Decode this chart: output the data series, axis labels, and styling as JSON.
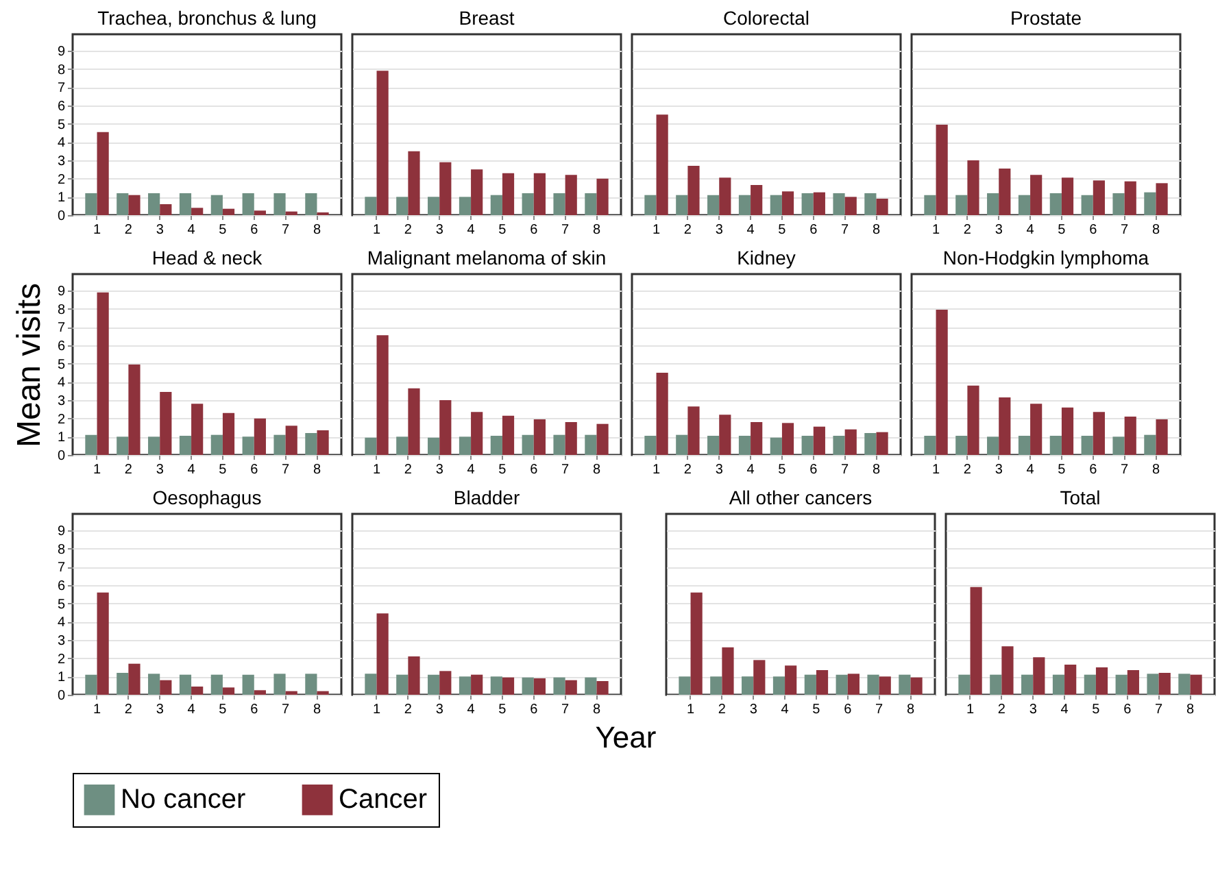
{
  "chart_data": [
    {
      "type": "bar",
      "title": "Trachea, bronchus & lung",
      "categories": [
        "1",
        "2",
        "3",
        "4",
        "5",
        "6",
        "7",
        "8"
      ],
      "ylim": [
        0,
        9.9
      ],
      "yticks": [
        0,
        1,
        2,
        3,
        4,
        5,
        6,
        7,
        8,
        9
      ],
      "grid": "y",
      "legend": "bottom",
      "series": [
        {
          "name": "No cancer",
          "color": "#6e8f82",
          "values": [
            1.2,
            1.2,
            1.2,
            1.2,
            1.1,
            1.2,
            1.2,
            1.2
          ]
        },
        {
          "name": "Cancer",
          "color": "#8e323c",
          "values": [
            4.55,
            1.1,
            0.6,
            0.4,
            0.35,
            0.25,
            0.2,
            0.15
          ]
        }
      ]
    },
    {
      "type": "bar",
      "title": "Breast",
      "categories": [
        "1",
        "2",
        "3",
        "4",
        "5",
        "6",
        "7",
        "8"
      ],
      "ylim": [
        0,
        9.9
      ],
      "yticks": [
        0,
        1,
        2,
        3,
        4,
        5,
        6,
        7,
        8,
        9
      ],
      "grid": "y",
      "legend": "bottom",
      "tick_labels": "x",
      "series": [
        {
          "name": "No cancer",
          "color": "#6e8f82",
          "values": [
            1.0,
            1.0,
            1.0,
            1.0,
            1.1,
            1.2,
            1.2,
            1.2
          ]
        },
        {
          "name": "Cancer",
          "color": "#8e323c",
          "values": [
            7.9,
            3.5,
            2.9,
            2.5,
            2.3,
            2.3,
            2.2,
            2.0
          ]
        }
      ]
    },
    {
      "type": "bar",
      "title": "Colorectal",
      "categories": [
        "1",
        "2",
        "3",
        "4",
        "5",
        "6",
        "7",
        "8"
      ],
      "ylim": [
        0,
        9.9
      ],
      "yticks": [
        0,
        1,
        2,
        3,
        4,
        5,
        6,
        7,
        8,
        9
      ],
      "grid": "y",
      "legend": "bottom",
      "tick_labels": "x",
      "series": [
        {
          "name": "No cancer",
          "color": "#6e8f82",
          "values": [
            1.1,
            1.1,
            1.1,
            1.1,
            1.1,
            1.2,
            1.2,
            1.2
          ]
        },
        {
          "name": "Cancer",
          "color": "#8e323c",
          "values": [
            5.5,
            2.7,
            2.05,
            1.65,
            1.3,
            1.25,
            1.0,
            0.9
          ]
        }
      ]
    },
    {
      "type": "bar",
      "title": "Prostate",
      "categories": [
        "1",
        "2",
        "3",
        "4",
        "5",
        "6",
        "7",
        "8"
      ],
      "ylim": [
        0,
        9.9
      ],
      "yticks": [
        0,
        1,
        2,
        3,
        4,
        5,
        6,
        7,
        8,
        9
      ],
      "grid": "y",
      "legend": "bottom",
      "tick_labels": "x",
      "series": [
        {
          "name": "No cancer",
          "color": "#6e8f82",
          "values": [
            1.1,
            1.1,
            1.2,
            1.1,
            1.2,
            1.1,
            1.2,
            1.25
          ]
        },
        {
          "name": "Cancer",
          "color": "#8e323c",
          "values": [
            4.95,
            3.0,
            2.55,
            2.2,
            2.05,
            1.9,
            1.85,
            1.75
          ]
        }
      ]
    },
    {
      "type": "bar",
      "title": "Head & neck",
      "ylabel": "Mean visits",
      "categories": [
        "1",
        "2",
        "3",
        "4",
        "5",
        "6",
        "7",
        "8"
      ],
      "ylim": [
        0,
        9.9
      ],
      "yticks": [
        0,
        1,
        2,
        3,
        4,
        5,
        6,
        7,
        8,
        9
      ],
      "grid": "y",
      "legend": "bottom",
      "series": [
        {
          "name": "No cancer",
          "color": "#6e8f82",
          "values": [
            1.1,
            1.0,
            1.0,
            1.05,
            1.1,
            1.0,
            1.1,
            1.2
          ]
        },
        {
          "name": "Cancer",
          "color": "#8e323c",
          "values": [
            8.9,
            4.95,
            3.45,
            2.8,
            2.3,
            2.0,
            1.6,
            1.35
          ]
        }
      ]
    },
    {
      "type": "bar",
      "title": "Malignant melanoma of skin",
      "categories": [
        "1",
        "2",
        "3",
        "4",
        "5",
        "6",
        "7",
        "8"
      ],
      "ylim": [
        0,
        9.9
      ],
      "yticks": [
        0,
        1,
        2,
        3,
        4,
        5,
        6,
        7,
        8,
        9
      ],
      "grid": "y",
      "legend": "bottom",
      "tick_labels": "x",
      "series": [
        {
          "name": "No cancer",
          "color": "#6e8f82",
          "values": [
            0.95,
            1.0,
            0.95,
            1.0,
            1.05,
            1.1,
            1.1,
            1.1
          ]
        },
        {
          "name": "Cancer",
          "color": "#8e323c",
          "values": [
            6.55,
            3.65,
            3.0,
            2.35,
            2.15,
            1.95,
            1.8,
            1.7
          ]
        }
      ]
    },
    {
      "type": "bar",
      "title": "Kidney",
      "categories": [
        "1",
        "2",
        "3",
        "4",
        "5",
        "6",
        "7",
        "8"
      ],
      "ylim": [
        0,
        9.9
      ],
      "yticks": [
        0,
        1,
        2,
        3,
        4,
        5,
        6,
        7,
        8,
        9
      ],
      "grid": "y",
      "legend": "bottom",
      "tick_labels": "x",
      "series": [
        {
          "name": "No cancer",
          "color": "#6e8f82",
          "values": [
            1.05,
            1.1,
            1.05,
            1.05,
            0.95,
            1.05,
            1.05,
            1.2
          ]
        },
        {
          "name": "Cancer",
          "color": "#8e323c",
          "values": [
            4.5,
            2.65,
            2.2,
            1.8,
            1.75,
            1.55,
            1.4,
            1.25
          ]
        }
      ]
    },
    {
      "type": "bar",
      "title": "Non-Hodgkin lymphoma",
      "categories": [
        "1",
        "2",
        "3",
        "4",
        "5",
        "6",
        "7",
        "8"
      ],
      "ylim": [
        0,
        9.9
      ],
      "yticks": [
        0,
        1,
        2,
        3,
        4,
        5,
        6,
        7,
        8,
        9
      ],
      "grid": "y",
      "legend": "bottom",
      "tick_labels": "x",
      "series": [
        {
          "name": "No cancer",
          "color": "#6e8f82",
          "values": [
            1.05,
            1.05,
            1.0,
            1.05,
            1.05,
            1.05,
            1.0,
            1.1
          ]
        },
        {
          "name": "Cancer",
          "color": "#8e323c",
          "values": [
            7.95,
            3.8,
            3.15,
            2.8,
            2.6,
            2.35,
            2.1,
            1.95
          ]
        }
      ]
    },
    {
      "type": "bar",
      "title": "Oesophagus",
      "categories": [
        "1",
        "2",
        "3",
        "4",
        "5",
        "6",
        "7",
        "8"
      ],
      "ylim": [
        0,
        9.9
      ],
      "yticks": [
        0,
        1,
        2,
        3,
        4,
        5,
        6,
        7,
        8,
        9
      ],
      "grid": "y",
      "legend": "bottom",
      "series": [
        {
          "name": "No cancer",
          "color": "#6e8f82",
          "values": [
            1.1,
            1.2,
            1.15,
            1.1,
            1.1,
            1.1,
            1.15,
            1.15
          ]
        },
        {
          "name": "Cancer",
          "color": "#8e323c",
          "values": [
            5.6,
            1.7,
            0.8,
            0.45,
            0.4,
            0.25,
            0.2,
            0.2
          ]
        }
      ]
    },
    {
      "type": "bar",
      "title": "Bladder",
      "xlabel": "Year",
      "categories": [
        "1",
        "2",
        "3",
        "4",
        "5",
        "6",
        "7",
        "8"
      ],
      "ylim": [
        0,
        9.9
      ],
      "yticks": [
        0,
        1,
        2,
        3,
        4,
        5,
        6,
        7,
        8,
        9
      ],
      "grid": "y",
      "legend": "bottom",
      "tick_labels": "x",
      "series": [
        {
          "name": "No cancer",
          "color": "#6e8f82",
          "values": [
            1.15,
            1.1,
            1.1,
            1.0,
            1.0,
            0.95,
            0.95,
            0.95
          ]
        },
        {
          "name": "Cancer",
          "color": "#8e323c",
          "values": [
            4.45,
            2.1,
            1.3,
            1.1,
            0.95,
            0.9,
            0.8,
            0.75
          ]
        }
      ]
    },
    {
      "type": "bar",
      "title": "All other cancers",
      "categories": [
        "1",
        "2",
        "3",
        "4",
        "5",
        "6",
        "7",
        "8"
      ],
      "ylim": [
        0,
        9.9
      ],
      "yticks": [
        0,
        1,
        2,
        3,
        4,
        5,
        6,
        7,
        8,
        9
      ],
      "grid": "y",
      "legend": "bottom",
      "tick_labels": "x",
      "series": [
        {
          "name": "No cancer",
          "color": "#6e8f82",
          "values": [
            1.0,
            1.0,
            1.0,
            1.0,
            1.1,
            1.1,
            1.1,
            1.1
          ]
        },
        {
          "name": "Cancer",
          "color": "#8e323c",
          "values": [
            5.6,
            2.6,
            1.9,
            1.6,
            1.35,
            1.15,
            1.0,
            0.95
          ]
        }
      ]
    },
    {
      "type": "bar",
      "title": "Total",
      "categories": [
        "1",
        "2",
        "3",
        "4",
        "5",
        "6",
        "7",
        "8"
      ],
      "ylim": [
        0,
        9.9
      ],
      "yticks": [
        0,
        1,
        2,
        3,
        4,
        5,
        6,
        7,
        8,
        9
      ],
      "grid": "y",
      "legend": "bottom",
      "tick_labels": "x",
      "series": [
        {
          "name": "No cancer",
          "color": "#6e8f82",
          "values": [
            1.1,
            1.1,
            1.1,
            1.1,
            1.1,
            1.1,
            1.15,
            1.15
          ]
        },
        {
          "name": "Cancer",
          "color": "#8e323c",
          "values": [
            5.9,
            2.65,
            2.05,
            1.65,
            1.5,
            1.35,
            1.2,
            1.1
          ]
        }
      ]
    }
  ]
}
